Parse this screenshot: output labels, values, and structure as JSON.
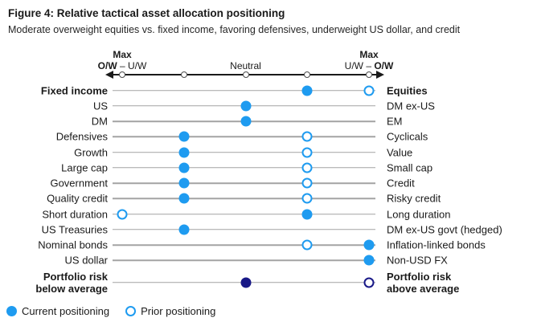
{
  "title": "Figure 4: Relative tactical asset allocation positioning",
  "subtitle": "Moderate overweight equities vs. fixed income, favoring defensives, underweight US dollar, and credit",
  "axis": {
    "left_top": "Max",
    "left_bold": "O/W",
    "left_rest": " – U/W",
    "center_label": "Neutral",
    "right_top": "Max",
    "right_rest": "U/W – ",
    "right_bold": "O/W"
  },
  "legend": {
    "current_label": "Current positioning",
    "prior_label": "Prior positioning"
  },
  "colors": {
    "current_blue": "#1E9BF0",
    "portfolio_navy": "#181887",
    "row_line_gray": "#a3a3a3",
    "axis_black": "#1a1a1a"
  },
  "chart_data": {
    "type": "scatter",
    "subtype": "dot-plot-diverging",
    "title": "Figure 4: Relative tactical asset allocation positioning",
    "subtitle": "Moderate overweight equities vs. fixed income, favoring defensives, underweight US dollar, and credit",
    "scale": {
      "ticks": [
        1,
        2,
        3,
        4,
        5
      ],
      "tick_1_meaning": "Max O/W left asset – U/W right asset",
      "tick_3_meaning": "Neutral",
      "tick_5_meaning": "Max U/W left asset – O/W right asset",
      "grid": false
    },
    "legend_position": "bottom-left",
    "series": [
      {
        "name": "Current positioning",
        "marker": "filled-circle"
      },
      {
        "name": "Prior positioning",
        "marker": "open-circle"
      }
    ],
    "rows": [
      {
        "left": "Fixed income",
        "right": "Equities",
        "bold": true,
        "current": 4,
        "prior": 5,
        "color": "blue"
      },
      {
        "left": "US",
        "right": "DM ex-US",
        "bold": false,
        "current": 3,
        "prior": null,
        "color": "blue"
      },
      {
        "left": "DM",
        "right": "EM",
        "bold": false,
        "current": 3,
        "prior": null,
        "color": "blue"
      },
      {
        "left": "Defensives",
        "right": "Cyclicals",
        "bold": false,
        "current": 2,
        "prior": 4,
        "color": "blue"
      },
      {
        "left": "Growth",
        "right": "Value",
        "bold": false,
        "current": 2,
        "prior": 4,
        "color": "blue"
      },
      {
        "left": "Large cap",
        "right": "Small cap",
        "bold": false,
        "current": 2,
        "prior": 4,
        "color": "blue"
      },
      {
        "left": "Government",
        "right": "Credit",
        "bold": false,
        "current": 2,
        "prior": 4,
        "color": "blue"
      },
      {
        "left": "Quality credit",
        "right": "Risky credit",
        "bold": false,
        "current": 2,
        "prior": 4,
        "color": "blue"
      },
      {
        "left": "Short duration",
        "right": "Long duration",
        "bold": false,
        "current": 4,
        "prior": 1,
        "color": "blue"
      },
      {
        "left": "US Treasuries",
        "right": "DM ex-US govt (hedged)",
        "bold": false,
        "current": 2,
        "prior": null,
        "color": "blue"
      },
      {
        "left": "Nominal bonds",
        "right": "Inflation-linked bonds",
        "bold": false,
        "current": 5,
        "prior": 4,
        "color": "blue"
      },
      {
        "left": "US dollar",
        "right": "Non-USD FX",
        "bold": false,
        "current": 5,
        "prior": null,
        "color": "blue"
      },
      {
        "left": "Portfolio risk\nbelow average",
        "right": "Portfolio risk\nabove average",
        "bold": true,
        "current": 3,
        "prior": 5,
        "color": "navy",
        "gap": true
      }
    ]
  }
}
